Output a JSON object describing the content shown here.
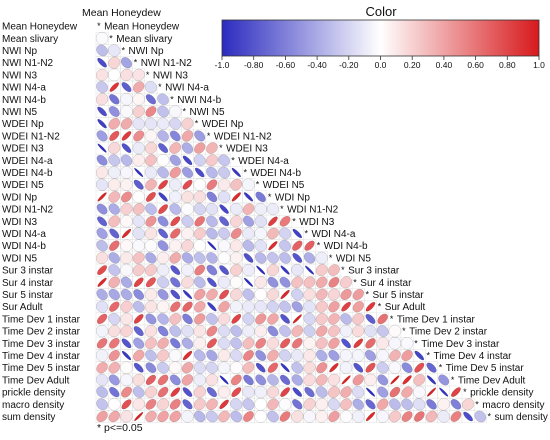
{
  "chart_data": {
    "type": "heatmap",
    "subtype": "ellipse-correlogram-lower-triangle",
    "title": "",
    "legend_title": "Color",
    "colorbar_ticks": [
      "-1.0",
      "-0.80",
      "-0.60",
      "-0.40",
      "-0.20",
      "0.0",
      "0.20",
      "0.40",
      "0.60",
      "0.80",
      "1.0"
    ],
    "colorbar_range": [
      -1.0,
      1.0
    ],
    "colors": {
      "negative": "#2b2bbf",
      "zero": "#ffffff",
      "positive": "#d7191c"
    },
    "top_label": "Mean Honeydew",
    "footnote": "* p<=0.05",
    "variables": [
      "Mean Honeydew",
      "Mean slivary",
      "NWI Np",
      "NWI N1-N2",
      "NWI N3",
      "NWI N4-a",
      "NWI N4-b",
      "NWI N5",
      "WDEI Np",
      "WDEI N1-N2",
      "WDEI N3",
      "WDEI N4-a",
      "WDEI N4-b",
      "WDEI N5",
      "WDI Np",
      "WDI N1-N2",
      "WDI N3",
      "WDI N4-a",
      "WDI N4-b",
      "WDI N5",
      "Sur 3 instar",
      "Sur 4 instar",
      "Sur 5 instar",
      "Sur Adult",
      "Time Dev 1 instar",
      "Time Dev  2 instar",
      "Time Dev  3 instar",
      "Time Dev  4 instar",
      "Time Dev 5 instar",
      "Time Dev Adult",
      "prickle density",
      "macro density",
      "sum density"
    ],
    "significance_marker": "*",
    "correlations_note": "lower-triangle correlation values estimated visually"
  }
}
